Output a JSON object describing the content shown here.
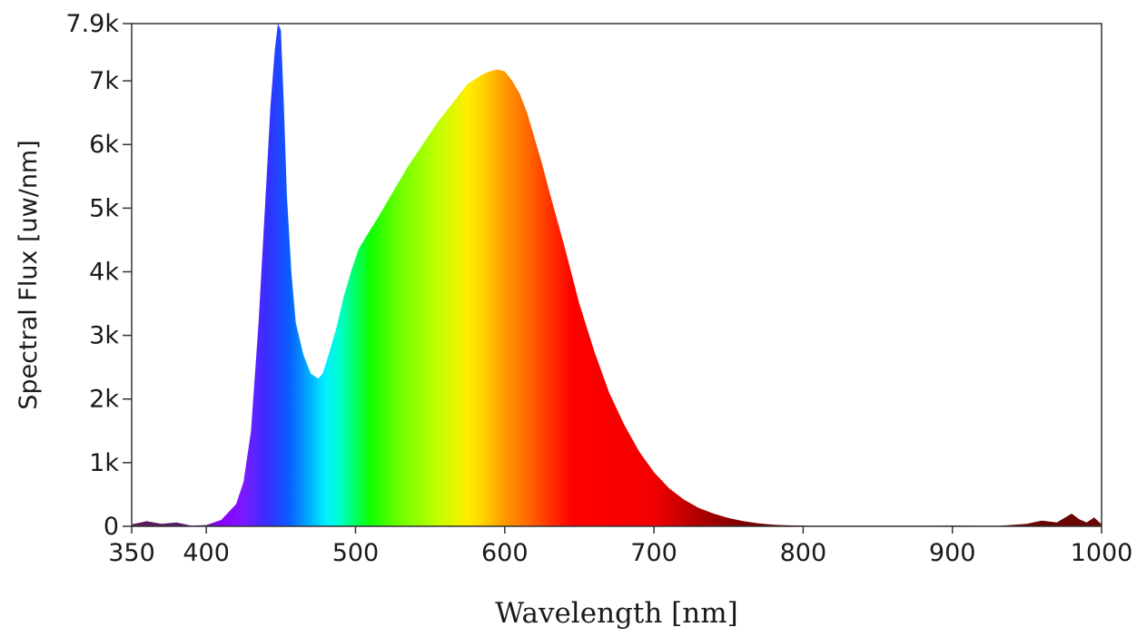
{
  "chart_data": {
    "type": "area",
    "xlabel": "Wavelength [nm]",
    "ylabel": "Spectral Flux [uw/nm]",
    "xlim": [
      350,
      1000
    ],
    "ylim": [
      0,
      7900
    ],
    "x_ticks": [
      {
        "value": 350,
        "label": "350"
      },
      {
        "value": 400,
        "label": "400"
      },
      {
        "value": 500,
        "label": "500"
      },
      {
        "value": 600,
        "label": "600"
      },
      {
        "value": 700,
        "label": "700"
      },
      {
        "value": 800,
        "label": "800"
      },
      {
        "value": 900,
        "label": "900"
      },
      {
        "value": 1000,
        "label": "1000"
      }
    ],
    "y_ticks": [
      {
        "value": 0,
        "label": "0"
      },
      {
        "value": 1000,
        "label": "1k"
      },
      {
        "value": 2000,
        "label": "2k"
      },
      {
        "value": 3000,
        "label": "3k"
      },
      {
        "value": 4000,
        "label": "4k"
      },
      {
        "value": 5000,
        "label": "5k"
      },
      {
        "value": 6000,
        "label": "6k"
      },
      {
        "value": 7000,
        "label": "7k"
      },
      {
        "value": 7900,
        "label": "7.9k"
      }
    ],
    "grid": false,
    "fill": "visible-spectrum gradient by wavelength",
    "x": [
      350,
      360,
      370,
      380,
      390,
      400,
      410,
      420,
      425,
      430,
      435,
      440,
      443,
      446,
      448,
      450,
      452,
      454,
      457,
      460,
      465,
      470,
      475,
      478,
      482,
      487,
      492,
      497,
      502,
      507,
      515,
      525,
      535,
      545,
      555,
      565,
      575,
      585,
      590,
      595,
      600,
      605,
      610,
      615,
      620,
      625,
      630,
      640,
      650,
      660,
      670,
      680,
      690,
      700,
      710,
      720,
      730,
      740,
      750,
      760,
      770,
      780,
      790,
      800,
      810,
      830,
      850,
      870,
      900,
      930,
      950,
      960,
      970,
      980,
      985,
      990,
      995,
      1000
    ],
    "y": [
      30,
      80,
      40,
      60,
      10,
      20,
      100,
      350,
      700,
      1500,
      3200,
      5300,
      6600,
      7500,
      7900,
      7800,
      6600,
      5200,
      4000,
      3200,
      2700,
      2400,
      2320,
      2400,
      2700,
      3100,
      3600,
      4000,
      4350,
      4550,
      4850,
      5250,
      5650,
      6000,
      6350,
      6650,
      6950,
      7100,
      7150,
      7180,
      7150,
      7000,
      6800,
      6500,
      6100,
      5700,
      5250,
      4400,
      3500,
      2750,
      2100,
      1600,
      1180,
      850,
      600,
      420,
      290,
      200,
      130,
      80,
      45,
      25,
      15,
      10,
      5,
      5,
      5,
      5,
      10,
      5,
      40,
      90,
      60,
      200,
      110,
      60,
      140,
      30
    ]
  }
}
